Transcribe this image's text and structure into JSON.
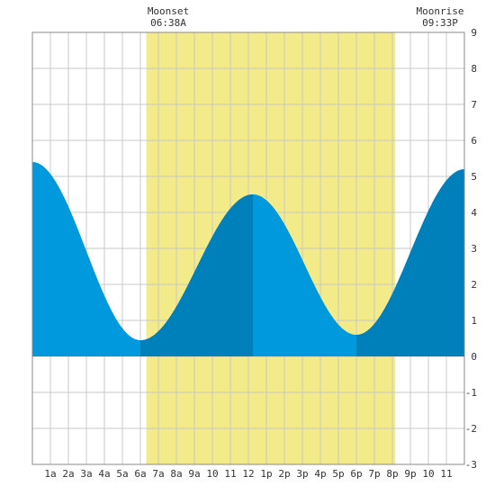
{
  "colors": {
    "background": "#ffffff",
    "grid": "#c8c8c8",
    "frame": "#888888",
    "daylight_band": "#f3ea8a",
    "tide_fill_light": "#0099dd",
    "tide_fill_dark": "#0080bb",
    "text": "#333333"
  },
  "annotations": [
    {
      "label": "Moonset",
      "time": "06:38A",
      "hour": 6.63
    },
    {
      "label": "Moonrise",
      "time": "09:33P",
      "hour": 21.55
    }
  ],
  "chart_data": {
    "type": "area",
    "title": "",
    "xlabel": "",
    "ylabel": "",
    "xlim": [
      0,
      24
    ],
    "ylim": [
      -3,
      9
    ],
    "grid": true,
    "x_tick_labels": [
      {
        "hour": 1,
        "label": "1a"
      },
      {
        "hour": 2,
        "label": "2a"
      },
      {
        "hour": 3,
        "label": "3a"
      },
      {
        "hour": 4,
        "label": "4a"
      },
      {
        "hour": 5,
        "label": "5a"
      },
      {
        "hour": 6,
        "label": "6a"
      },
      {
        "hour": 7,
        "label": "7a"
      },
      {
        "hour": 8,
        "label": "8a"
      },
      {
        "hour": 9,
        "label": "9a"
      },
      {
        "hour": 10,
        "label": "10"
      },
      {
        "hour": 11,
        "label": "11"
      },
      {
        "hour": 12,
        "label": "12"
      },
      {
        "hour": 13,
        "label": "1p"
      },
      {
        "hour": 14,
        "label": "2p"
      },
      {
        "hour": 15,
        "label": "3p"
      },
      {
        "hour": 16,
        "label": "4p"
      },
      {
        "hour": 17,
        "label": "5p"
      },
      {
        "hour": 18,
        "label": "6p"
      },
      {
        "hour": 19,
        "label": "7p"
      },
      {
        "hour": 20,
        "label": "8p"
      },
      {
        "hour": 21,
        "label": "9p"
      },
      {
        "hour": 22,
        "label": "10"
      },
      {
        "hour": 23,
        "label": "11"
      }
    ],
    "y_ticks": [
      -3,
      -2,
      -1,
      0,
      1,
      2,
      3,
      4,
      5,
      6,
      7,
      8,
      9
    ],
    "daylight_band": {
      "start_hour": 6.33,
      "end_hour": 20.15
    },
    "tide_extremes": [
      {
        "hour": 0.0,
        "height": 5.4,
        "kind": "high"
      },
      {
        "hour": 6.0,
        "height": 0.45,
        "kind": "low"
      },
      {
        "hour": 12.25,
        "height": 4.5,
        "kind": "high"
      },
      {
        "hour": 18.0,
        "height": 0.6,
        "kind": "low"
      },
      {
        "hour": 24.0,
        "height": 5.2,
        "kind": "high"
      }
    ]
  }
}
